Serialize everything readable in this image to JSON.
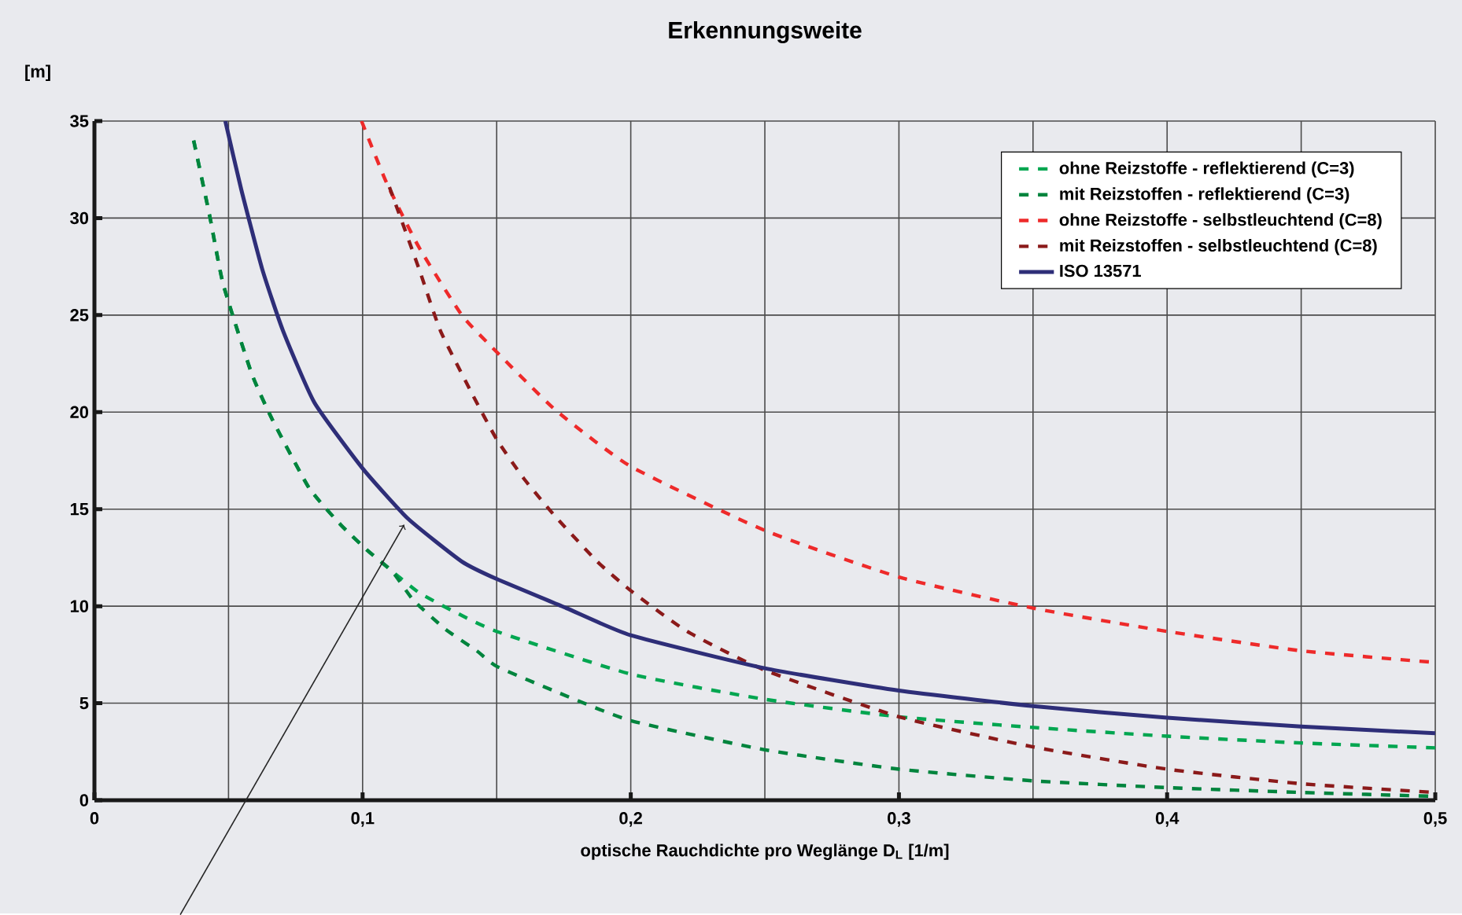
{
  "chart_data": {
    "type": "line",
    "title": "Erkennungsweite",
    "xlabel": "optische Rauchdichte pro Weglänge D$_{L}$ [1/m]",
    "ylabel": "[m]",
    "xlim": [
      0,
      0.5
    ],
    "ylim": [
      0,
      35
    ],
    "xticks": [
      0,
      {
        "value": 0.1,
        "label": "0,1"
      },
      {
        "value": 0.2,
        "label": "0,2"
      },
      {
        "value": 0.3,
        "label": "0,3"
      },
      {
        "value": 0.4,
        "label": "0,4"
      },
      {
        "value": 0.5,
        "label": "0,5"
      }
    ],
    "yticks": [
      0,
      5,
      10,
      15,
      20,
      25,
      30,
      35
    ],
    "grid": true,
    "legend": "top right",
    "marker": "none",
    "series": [
      {
        "name": "ohne Reizstoffe - reflektierend (C=3)",
        "color": "#00a650",
        "line_style": "dashed",
        "x": [
          0.037,
          0.043,
          0.048,
          0.0586,
          0.0664,
          0.08,
          0.0918,
          0.1016,
          0.111,
          0.121,
          0.133,
          0.15,
          0.2,
          0.25,
          0.3,
          0.35,
          0.4,
          0.45,
          0.5
        ],
        "values": [
          34,
          30.1,
          26.6,
          22,
          19.6,
          16.1,
          14.2,
          12.9,
          11.8,
          10.7,
          9.8,
          8.7,
          6.5,
          5.2,
          4.3,
          3.75,
          3.3,
          2.95,
          2.7
        ]
      },
      {
        "name": "mit Reizstoffen - reflektierend (C=3)",
        "color": "#00843d",
        "line_style": "dashed",
        "x": [
          0.037,
          0.043,
          0.048,
          0.0586,
          0.0664,
          0.08,
          0.0918,
          0.1016,
          0.111,
          0.119,
          0.131,
          0.1426,
          0.15,
          0.172,
          0.2,
          0.25,
          0.3,
          0.35,
          0.4,
          0.45,
          0.5
        ],
        "values": [
          34,
          30.1,
          26.6,
          22,
          19.6,
          16.1,
          14.2,
          12.9,
          11.8,
          10.3,
          8.8,
          7.7,
          6.9,
          5.6,
          4.1,
          2.6,
          1.6,
          1.0,
          0.65,
          0.4,
          0.2
        ]
      },
      {
        "name": "ohne Reizstoffe - selbstleuchtend (C=8)",
        "color": "#ee2a2a",
        "line_style": "dashed",
        "x": [
          0.0996,
          0.109,
          0.121,
          0.137,
          0.15,
          0.172,
          0.2,
          0.25,
          0.3,
          0.35,
          0.4,
          0.45,
          0.5
        ],
        "values": [
          35,
          31.8,
          28.5,
          25,
          23.1,
          20.1,
          17.2,
          13.9,
          11.5,
          9.9,
          8.7,
          7.7,
          7.1
        ]
      },
      {
        "name": "mit Reizstoffen - selbstleuchtend (C=8)",
        "color": "#8b1a1a",
        "line_style": "dashed",
        "x": [
          0.11,
          0.121,
          0.129,
          0.141,
          0.15,
          0.16,
          0.172,
          0.1875,
          0.2,
          0.221,
          0.25,
          0.3,
          0.35,
          0.4,
          0.45,
          0.5
        ],
        "values": [
          31.6,
          27.4,
          24.2,
          20.9,
          18.6,
          16.6,
          14.6,
          12.3,
          10.8,
          8.7,
          6.7,
          4.3,
          2.75,
          1.6,
          0.85,
          0.4
        ]
      },
      {
        "name": "ISO 13571",
        "color": "#2e2e78",
        "line_style": "solid",
        "x": [
          0.0488,
          0.0547,
          0.0625,
          0.0703,
          0.082,
          0.1,
          0.117,
          0.137,
          0.15,
          0.176,
          0.2,
          0.25,
          0.3,
          0.35,
          0.4,
          0.45,
          0.5
        ],
        "values": [
          35,
          31.5,
          27.4,
          24.2,
          20.5,
          17.1,
          14.5,
          12.3,
          11.4,
          9.9,
          8.5,
          6.8,
          5.65,
          4.85,
          4.25,
          3.8,
          3.45
        ]
      }
    ]
  }
}
